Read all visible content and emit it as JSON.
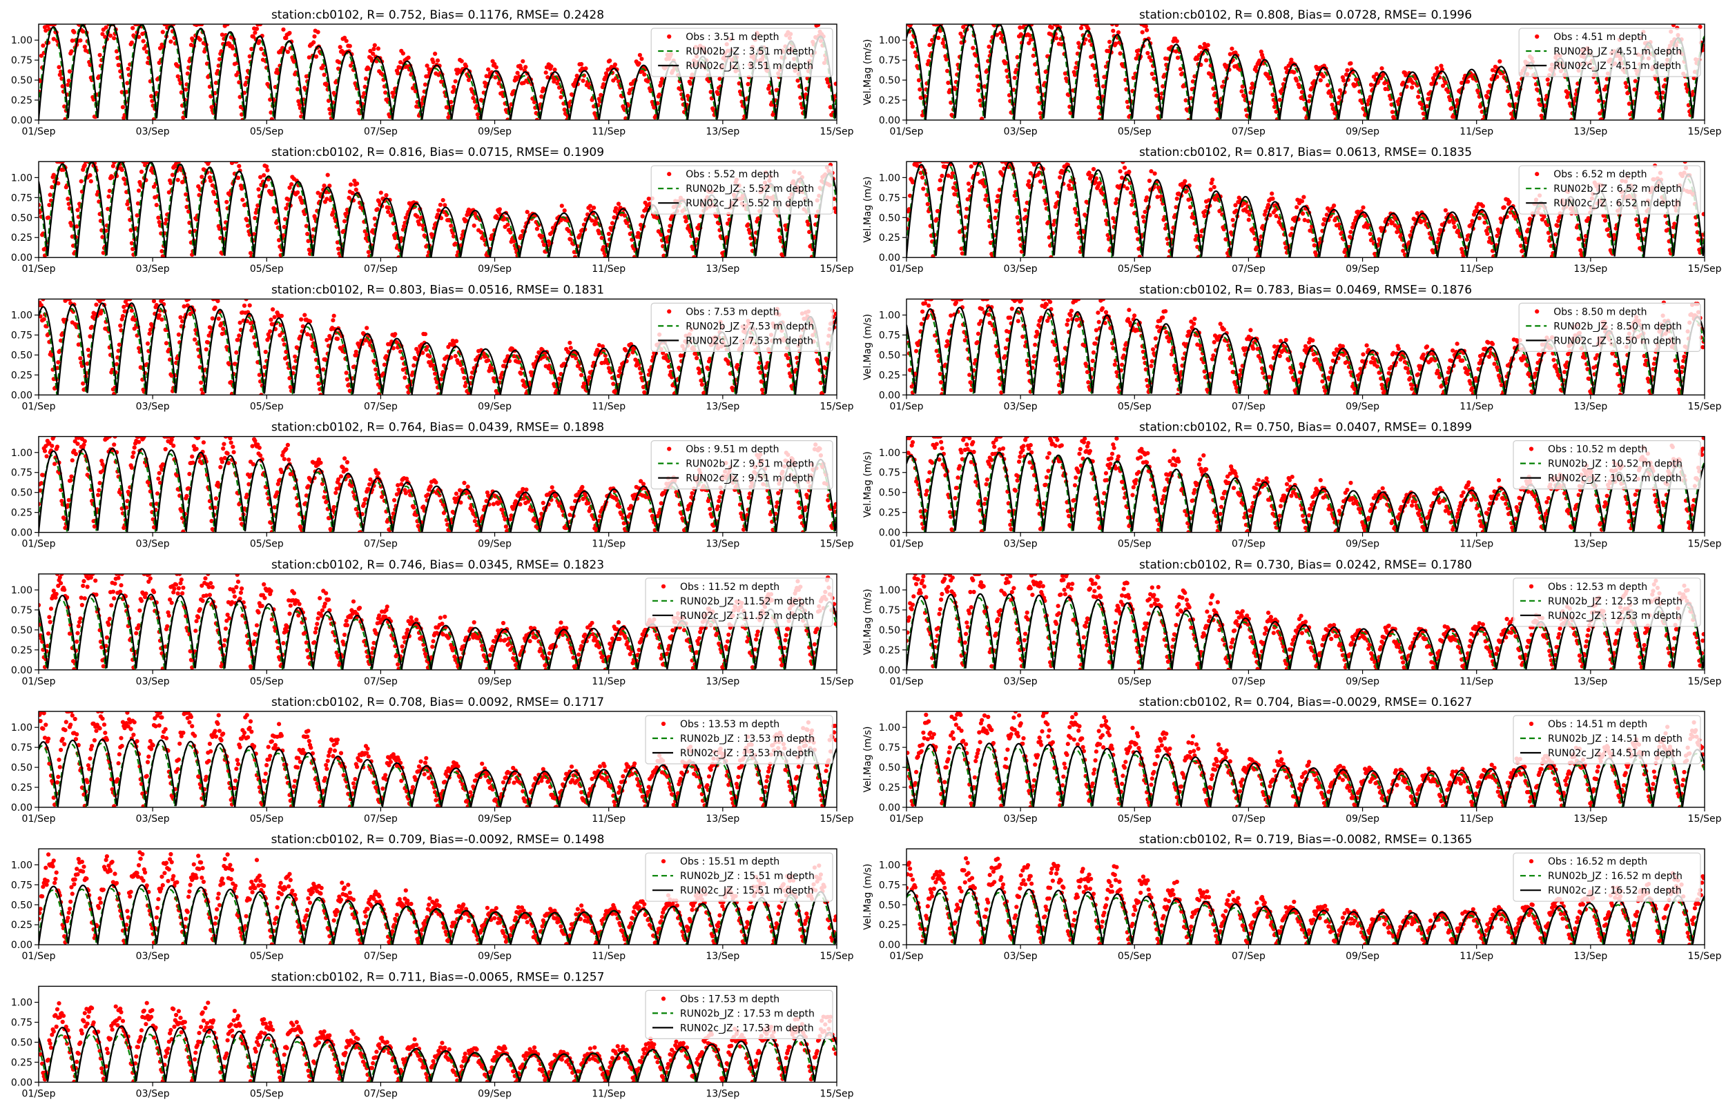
{
  "figure": {
    "colors": {
      "obs": "#ff0000",
      "run02b": "#008000",
      "run02c": "#000000",
      "axes": "#000000",
      "background": "#ffffff"
    },
    "x_tick_labels": [
      "01/Sep",
      "03/Sep",
      "05/Sep",
      "07/Sep",
      "09/Sep",
      "11/Sep",
      "13/Sep",
      "15/Sep"
    ],
    "y_tick_labels": [
      "0.00",
      "0.25",
      "0.50",
      "0.75",
      "1.00"
    ],
    "ylabel_right_column": "Vel.Mag (m/s)"
  },
  "chart_data": [
    {
      "type": "line",
      "title": "station:cb0102, R= 0.752, Bias= 0.1176, RMSE= 0.2428",
      "xlabel": "",
      "ylabel": "",
      "x_range": [
        "2020-09-01",
        "2020-09-15"
      ],
      "ylim": [
        0,
        1.2
      ],
      "legend": [
        "Obs : 3.51 m depth",
        "RUN02b_JZ : 3.51 m depth",
        "RUN02c_JZ : 3.51 m depth"
      ],
      "legend_position": "upper right",
      "series": [
        {
          "name": "Obs : 3.51 m depth",
          "style": "markers",
          "amplitude_range": [
            0.6,
            1.2
          ]
        },
        {
          "name": "RUN02b_JZ : 3.51 m depth",
          "style": "dashed",
          "amplitude_range": [
            0.55,
            1.2
          ]
        },
        {
          "name": "RUN02c_JZ : 3.51 m depth",
          "style": "solid",
          "amplitude_range": [
            0.6,
            1.2
          ]
        }
      ]
    },
    {
      "type": "line",
      "title": "station:cb0102, R= 0.808, Bias= 0.0728, RMSE= 0.1996",
      "xlabel": "",
      "ylabel": "Vel.Mag (m/s)",
      "x_range": [
        "2020-09-01",
        "2020-09-15"
      ],
      "ylim": [
        0,
        1.2
      ],
      "legend": [
        "Obs : 4.51 m depth",
        "RUN02b_JZ : 4.51 m depth",
        "RUN02c_JZ : 4.51 m depth"
      ],
      "legend_position": "upper right",
      "series": [
        {
          "name": "Obs : 4.51 m depth",
          "style": "markers",
          "amplitude_range": [
            0.55,
            1.2
          ]
        },
        {
          "name": "RUN02b_JZ : 4.51 m depth",
          "style": "dashed",
          "amplitude_range": [
            0.55,
            1.2
          ]
        },
        {
          "name": "RUN02c_JZ : 4.51 m depth",
          "style": "solid",
          "amplitude_range": [
            0.6,
            1.2
          ]
        }
      ]
    },
    {
      "type": "line",
      "title": "station:cb0102, R= 0.816, Bias= 0.0715, RMSE= 0.1909",
      "xlabel": "",
      "ylabel": "",
      "x_range": [
        "2020-09-01",
        "2020-09-15"
      ],
      "ylim": [
        0,
        1.2
      ],
      "legend": [
        "Obs : 5.52 m depth",
        "RUN02b_JZ : 5.52 m depth",
        "RUN02c_JZ : 5.52 m depth"
      ],
      "legend_position": "upper right",
      "series": [
        {
          "name": "Obs : 5.52 m depth",
          "style": "markers",
          "amplitude_range": [
            0.5,
            1.2
          ]
        },
        {
          "name": "RUN02b_JZ : 5.52 m depth",
          "style": "dashed",
          "amplitude_range": [
            0.5,
            1.2
          ]
        },
        {
          "name": "RUN02c_JZ : 5.52 m depth",
          "style": "solid",
          "amplitude_range": [
            0.55,
            1.2
          ]
        }
      ]
    },
    {
      "type": "line",
      "title": "station:cb0102, R= 0.817, Bias= 0.0613, RMSE= 0.1835",
      "xlabel": "",
      "ylabel": "Vel.Mag (m/s)",
      "x_range": [
        "2020-09-01",
        "2020-09-15"
      ],
      "ylim": [
        0,
        1.2
      ],
      "legend": [
        "Obs : 6.52 m depth",
        "RUN02b_JZ : 6.52 m depth",
        "RUN02c_JZ : 6.52 m depth"
      ],
      "legend_position": "upper right",
      "series": [
        {
          "name": "Obs : 6.52 m depth",
          "style": "markers",
          "amplitude_range": [
            0.5,
            1.2
          ]
        },
        {
          "name": "RUN02b_JZ : 6.52 m depth",
          "style": "dashed",
          "amplitude_range": [
            0.5,
            1.15
          ]
        },
        {
          "name": "RUN02c_JZ : 6.52 m depth",
          "style": "solid",
          "amplitude_range": [
            0.55,
            1.2
          ]
        }
      ]
    },
    {
      "type": "line",
      "title": "station:cb0102, R= 0.803, Bias= 0.0516, RMSE= 0.1831",
      "xlabel": "",
      "ylabel": "",
      "x_range": [
        "2020-09-01",
        "2020-09-15"
      ],
      "ylim": [
        0,
        1.2
      ],
      "legend": [
        "Obs : 7.53 m depth",
        "RUN02b_JZ : 7.53 m depth",
        "RUN02c_JZ : 7.53 m depth"
      ],
      "legend_position": "upper right",
      "series": [
        {
          "name": "Obs : 7.53 m depth",
          "style": "markers",
          "amplitude_range": [
            0.5,
            1.15
          ]
        },
        {
          "name": "RUN02b_JZ : 7.53 m depth",
          "style": "dashed",
          "amplitude_range": [
            0.5,
            1.1
          ]
        },
        {
          "name": "RUN02c_JZ : 7.53 m depth",
          "style": "solid",
          "amplitude_range": [
            0.55,
            1.15
          ]
        }
      ]
    },
    {
      "type": "line",
      "title": "station:cb0102, R= 0.783, Bias= 0.0469, RMSE= 0.1876",
      "xlabel": "",
      "ylabel": "Vel.Mag (m/s)",
      "x_range": [
        "2020-09-01",
        "2020-09-15"
      ],
      "ylim": [
        0,
        1.2
      ],
      "legend": [
        "Obs : 8.50 m depth",
        "RUN02b_JZ : 8.50 m depth",
        "RUN02c_JZ : 8.50 m depth"
      ],
      "legend_position": "upper right",
      "series": [
        {
          "name": "Obs : 8.50 m depth",
          "style": "markers",
          "amplitude_range": [
            0.5,
            1.15
          ]
        },
        {
          "name": "RUN02b_JZ : 8.50 m depth",
          "style": "dashed",
          "amplitude_range": [
            0.5,
            1.05
          ]
        },
        {
          "name": "RUN02c_JZ : 8.50 m depth",
          "style": "solid",
          "amplitude_range": [
            0.55,
            1.1
          ]
        }
      ]
    },
    {
      "type": "line",
      "title": "station:cb0102, R= 0.764, Bias= 0.0439, RMSE= 0.1898",
      "xlabel": "",
      "ylabel": "",
      "x_range": [
        "2020-09-01",
        "2020-09-15"
      ],
      "ylim": [
        0,
        1.2
      ],
      "legend": [
        "Obs : 9.51 m depth",
        "RUN02b_JZ : 9.51 m depth",
        "RUN02c_JZ : 9.51 m depth"
      ],
      "legend_position": "upper right",
      "series": [
        {
          "name": "Obs : 9.51 m depth",
          "style": "markers",
          "amplitude_range": [
            0.45,
            1.15
          ]
        },
        {
          "name": "RUN02b_JZ : 9.51 m depth",
          "style": "dashed",
          "amplitude_range": [
            0.45,
            1.0
          ]
        },
        {
          "name": "RUN02c_JZ : 9.51 m depth",
          "style": "solid",
          "amplitude_range": [
            0.5,
            1.05
          ]
        }
      ]
    },
    {
      "type": "line",
      "title": "station:cb0102, R= 0.750, Bias= 0.0407, RMSE= 0.1899",
      "xlabel": "",
      "ylabel": "Vel.Mag (m/s)",
      "x_range": [
        "2020-09-01",
        "2020-09-15"
      ],
      "ylim": [
        0,
        1.2
      ],
      "legend": [
        "Obs : 10.52 m depth",
        "RUN02b_JZ : 10.52 m depth",
        "RUN02c_JZ : 10.52 m depth"
      ],
      "legend_position": "upper right",
      "series": [
        {
          "name": "Obs : 10.52 m depth",
          "style": "markers",
          "amplitude_range": [
            0.45,
            1.15
          ]
        },
        {
          "name": "RUN02b_JZ : 10.52 m depth",
          "style": "dashed",
          "amplitude_range": [
            0.45,
            1.0
          ]
        },
        {
          "name": "RUN02c_JZ : 10.52 m depth",
          "style": "solid",
          "amplitude_range": [
            0.5,
            1.0
          ]
        }
      ]
    },
    {
      "type": "line",
      "title": "station:cb0102, R= 0.746, Bias= 0.0345, RMSE= 0.1823",
      "xlabel": "",
      "ylabel": "",
      "x_range": [
        "2020-09-01",
        "2020-09-15"
      ],
      "ylim": [
        0,
        1.2
      ],
      "legend": [
        "Obs : 11.52 m depth",
        "RUN02b_JZ : 11.52 m depth",
        "RUN02c_JZ : 11.52 m depth"
      ],
      "legend_position": "upper right",
      "series": [
        {
          "name": "Obs : 11.52 m depth",
          "style": "markers",
          "amplitude_range": [
            0.45,
            1.15
          ]
        },
        {
          "name": "RUN02b_JZ : 11.52 m depth",
          "style": "dashed",
          "amplitude_range": [
            0.45,
            0.9
          ]
        },
        {
          "name": "RUN02c_JZ : 11.52 m depth",
          "style": "solid",
          "amplitude_range": [
            0.5,
            0.95
          ]
        }
      ]
    },
    {
      "type": "line",
      "title": "station:cb0102, R= 0.730, Bias= 0.0242, RMSE= 0.1780",
      "xlabel": "",
      "ylabel": "Vel.Mag (m/s)",
      "x_range": [
        "2020-09-01",
        "2020-09-15"
      ],
      "ylim": [
        0,
        1.2
      ],
      "legend": [
        "Obs : 12.53 m depth",
        "RUN02b_JZ : 12.53 m depth",
        "RUN02c_JZ : 12.53 m depth"
      ],
      "legend_position": "upper right",
      "series": [
        {
          "name": "Obs : 12.53 m depth",
          "style": "markers",
          "amplitude_range": [
            0.45,
            1.15
          ]
        },
        {
          "name": "RUN02b_JZ : 12.53 m depth",
          "style": "dashed",
          "amplitude_range": [
            0.45,
            0.9
          ]
        },
        {
          "name": "RUN02c_JZ : 12.53 m depth",
          "style": "solid",
          "amplitude_range": [
            0.5,
            0.95
          ]
        }
      ]
    },
    {
      "type": "line",
      "title": "station:cb0102, R= 0.708, Bias= 0.0092, RMSE= 0.1717",
      "xlabel": "",
      "ylabel": "",
      "x_range": [
        "2020-09-01",
        "2020-09-15"
      ],
      "ylim": [
        0,
        1.2
      ],
      "legend": [
        "Obs : 13.53 m depth",
        "RUN02b_JZ : 13.53 m depth",
        "RUN02c_JZ : 13.53 m depth"
      ],
      "legend_position": "upper right",
      "series": [
        {
          "name": "Obs : 13.53 m depth",
          "style": "markers",
          "amplitude_range": [
            0.4,
            1.1
          ]
        },
        {
          "name": "RUN02b_JZ : 13.53 m depth",
          "style": "dashed",
          "amplitude_range": [
            0.4,
            0.8
          ]
        },
        {
          "name": "RUN02c_JZ : 13.53 m depth",
          "style": "solid",
          "amplitude_range": [
            0.45,
            0.85
          ]
        }
      ]
    },
    {
      "type": "line",
      "title": "station:cb0102, R= 0.704, Bias=-0.0029, RMSE= 0.1627",
      "xlabel": "",
      "ylabel": "Vel.Mag (m/s)",
      "x_range": [
        "2020-09-01",
        "2020-09-15"
      ],
      "ylim": [
        0,
        1.2
      ],
      "legend": [
        "Obs : 14.51 m depth",
        "RUN02b_JZ : 14.51 m depth",
        "RUN02c_JZ : 14.51 m depth"
      ],
      "legend_position": "upper right",
      "series": [
        {
          "name": "Obs : 14.51 m depth",
          "style": "markers",
          "amplitude_range": [
            0.4,
            1.05
          ]
        },
        {
          "name": "RUN02b_JZ : 14.51 m depth",
          "style": "dashed",
          "amplitude_range": [
            0.4,
            0.75
          ]
        },
        {
          "name": "RUN02c_JZ : 14.51 m depth",
          "style": "solid",
          "amplitude_range": [
            0.45,
            0.8
          ]
        }
      ]
    },
    {
      "type": "line",
      "title": "station:cb0102, R= 0.709, Bias=-0.0092, RMSE= 0.1498",
      "xlabel": "",
      "ylabel": "",
      "x_range": [
        "2020-09-01",
        "2020-09-15"
      ],
      "ylim": [
        0,
        1.2
      ],
      "legend": [
        "Obs : 15.51 m depth",
        "RUN02b_JZ : 15.51 m depth",
        "RUN02c_JZ : 15.51 m depth"
      ],
      "legend_position": "upper right",
      "series": [
        {
          "name": "Obs : 15.51 m depth",
          "style": "markers",
          "amplitude_range": [
            0.4,
            1.0
          ]
        },
        {
          "name": "RUN02b_JZ : 15.51 m depth",
          "style": "dashed",
          "amplitude_range": [
            0.4,
            0.7
          ]
        },
        {
          "name": "RUN02c_JZ : 15.51 m depth",
          "style": "solid",
          "amplitude_range": [
            0.4,
            0.75
          ]
        }
      ]
    },
    {
      "type": "line",
      "title": "station:cb0102, R= 0.719, Bias=-0.0082, RMSE= 0.1365",
      "xlabel": "",
      "ylabel": "Vel.Mag (m/s)",
      "x_range": [
        "2020-09-01",
        "2020-09-15"
      ],
      "ylim": [
        0,
        1.2
      ],
      "legend": [
        "Obs : 16.52 m depth",
        "RUN02b_JZ : 16.52 m depth",
        "RUN02c_JZ : 16.52 m depth"
      ],
      "legend_position": "upper right",
      "series": [
        {
          "name": "Obs : 16.52 m depth",
          "style": "markers",
          "amplitude_range": [
            0.35,
            0.9
          ]
        },
        {
          "name": "RUN02b_JZ : 16.52 m depth",
          "style": "dashed",
          "amplitude_range": [
            0.35,
            0.65
          ]
        },
        {
          "name": "RUN02c_JZ : 16.52 m depth",
          "style": "solid",
          "amplitude_range": [
            0.4,
            0.7
          ]
        }
      ]
    },
    {
      "type": "line",
      "title": "station:cb0102, R= 0.711, Bias=-0.0065, RMSE= 0.1257",
      "xlabel": "",
      "ylabel": "",
      "x_range": [
        "2020-09-01",
        "2020-09-15"
      ],
      "ylim": [
        0,
        1.2
      ],
      "legend": [
        "Obs : 17.53 m depth",
        "RUN02b_JZ : 17.53 m depth",
        "RUN02c_JZ : 17.53 m depth"
      ],
      "legend_position": "upper right",
      "series": [
        {
          "name": "Obs : 17.53 m depth",
          "style": "markers",
          "amplitude_range": [
            0.35,
            0.85
          ]
        },
        {
          "name": "RUN02b_JZ : 17.53 m depth",
          "style": "dashed",
          "amplitude_range": [
            0.35,
            0.6
          ]
        },
        {
          "name": "RUN02c_JZ : 17.53 m depth",
          "style": "solid",
          "amplitude_range": [
            0.35,
            0.7
          ]
        }
      ]
    }
  ]
}
